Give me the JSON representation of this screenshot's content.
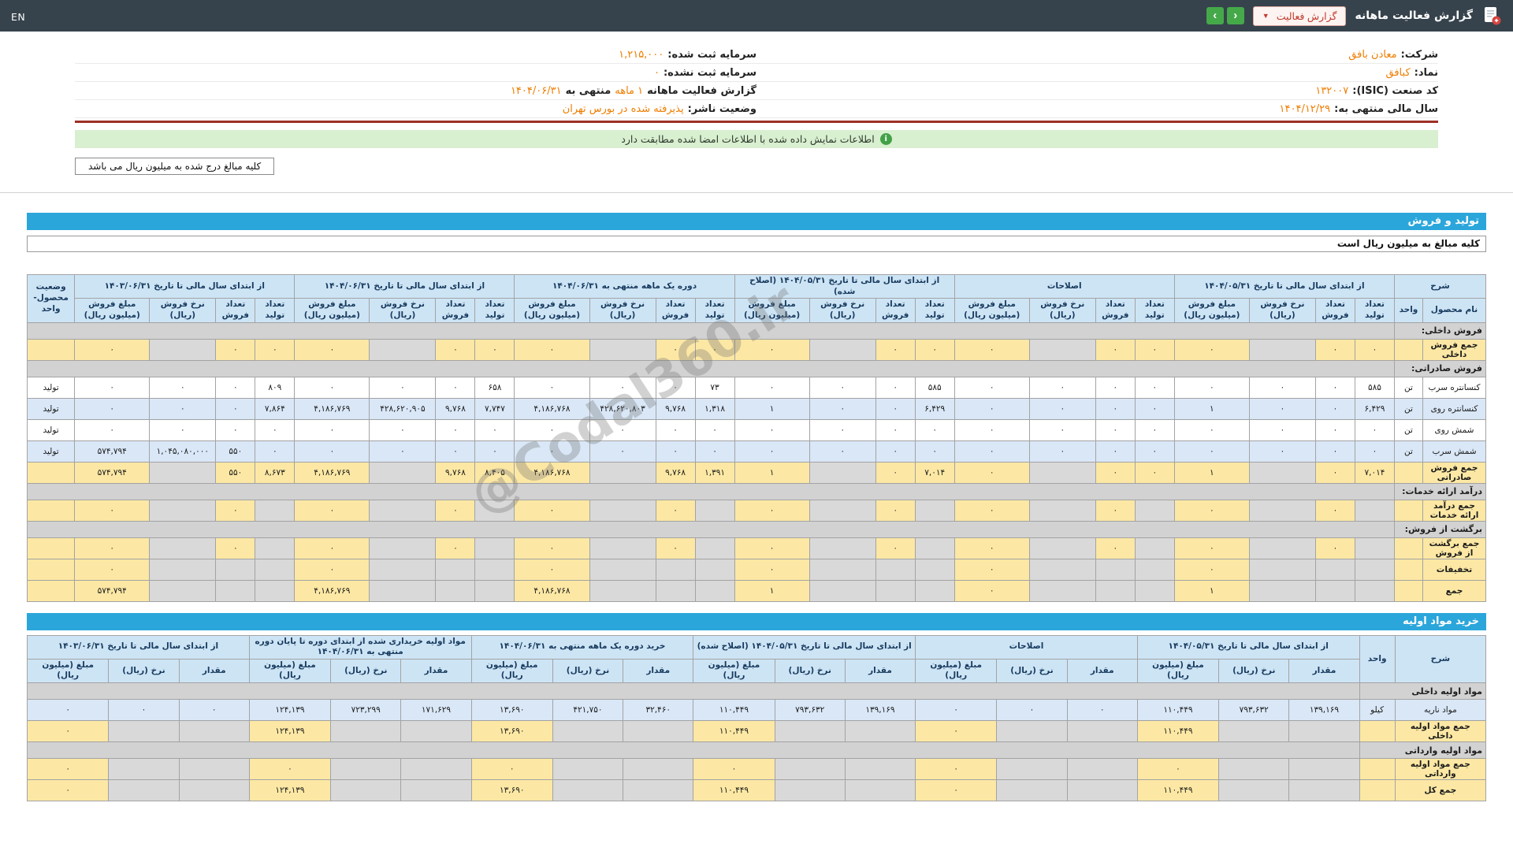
{
  "topbar": {
    "title": "گزارش فعالیت ماهانه",
    "dropdown_label": "گزارش فعالیت",
    "nav_prev": "‹",
    "nav_next": "›",
    "lang": "EN"
  },
  "info": {
    "rows": [
      {
        "r_label": "شرکت:",
        "r_value": "معادن بافق",
        "l_label": "سرمایه ثبت شده:",
        "l_value": "۱,۲۱۵,۰۰۰"
      },
      {
        "r_label": "نماد:",
        "r_value": "کبافق",
        "l_label": "سرمایه ثبت نشده:",
        "l_value": "۰"
      },
      {
        "r_label": "کد صنعت (ISIC):",
        "r_value": "۱۳۲۰۰۷",
        "l_label": "گزارش فعالیت ماهانه",
        "l_value": "۱ ماهه",
        "l_label2": "منتهی به",
        "l_value2": "۱۴۰۴/۰۶/۳۱"
      },
      {
        "r_label": "سال مالی منتهی به:",
        "r_value": "۱۴۰۴/۱۲/۲۹",
        "l_label": "وضعیت ناشر:",
        "l_value": "پذیرفته شده در بورس تهران"
      }
    ],
    "notice_icon": "i",
    "notice": "اطلاعات نمایش داده شده با اطلاعات امضا شده مطابقت دارد",
    "amounts_note": "کلیه مبالغ درج شده به میلیون ریال می باشد"
  },
  "watermark": "@Codal360.ir",
  "sales": {
    "section_title": "تولید و فروش",
    "subtitle": "کلیه مبالغ به میلیون ریال است",
    "header": {
      "desc": "شرح",
      "product": "نام محصول",
      "unit": "واحد",
      "status": "وضعیت محصول-واحد",
      "groups": [
        {
          "label": "از ابتدای سال مالی تا تاریخ ۱۴۰۴/۰۵/۳۱"
        },
        {
          "label": "اصلاحات"
        },
        {
          "label": "از ابتدای سال مالی تا تاریخ ۱۴۰۴/۰۵/۳۱ (اصلاح شده)"
        },
        {
          "label": "دوره یک ماهه منتهی به ۱۴۰۴/۰۶/۳۱"
        },
        {
          "label": "از ابتدای سال مالی تا تاریخ ۱۴۰۴/۰۶/۳۱"
        },
        {
          "label": "از ابتدای سال مالی تا تاریخ ۱۴۰۳/۰۶/۳۱"
        }
      ],
      "subcols": [
        "تعداد تولید",
        "تعداد فروش",
        "نرخ فروش (ریال)",
        "مبلغ فروش (میلیون ریال)"
      ]
    },
    "rows": [
      {
        "type": "section",
        "label": "فروش داخلی:"
      },
      {
        "type": "sum",
        "label": "جمع فروش داخلی",
        "unit": "",
        "status": "",
        "cells": [
          "۰",
          "۰",
          null,
          "۰",
          "۰",
          "۰",
          null,
          "۰",
          "۰",
          "۰",
          null,
          "۰",
          "۰",
          "۰",
          null,
          "۰",
          "۰",
          "۰",
          null,
          "۰",
          "۰",
          "۰",
          null,
          "۰"
        ]
      },
      {
        "type": "section",
        "label": "فروش صادراتی:"
      },
      {
        "type": "data",
        "alt": false,
        "label": "کنسانتره سرب",
        "unit": "تن",
        "status": "تولید",
        "cells": [
          "۵۸۵",
          "۰",
          "۰",
          "۰",
          "۰",
          "۰",
          "۰",
          "۰",
          "۵۸۵",
          "۰",
          "۰",
          "۰",
          "۷۳",
          "۰",
          "۰",
          "۰",
          "۶۵۸",
          "۰",
          "۰",
          "۰",
          "۸۰۹",
          "۰",
          "۰",
          "۰"
        ]
      },
      {
        "type": "data",
        "alt": true,
        "label": "کنسانتره روی",
        "unit": "تن",
        "status": "تولید",
        "cells": [
          "۶,۴۲۹",
          "۰",
          "۰",
          "۱",
          "۰",
          "۰",
          "۰",
          "۰",
          "۶,۴۲۹",
          "۰",
          "۰",
          "۱",
          "۱,۳۱۸",
          "۹,۷۶۸",
          "۴۲۸,۶۲۰,۸۰۳",
          "۴,۱۸۶,۷۶۸",
          "۷,۷۴۷",
          "۹,۷۶۸",
          "۴۲۸,۶۲۰,۹۰۵",
          "۴,۱۸۶,۷۶۹",
          "۷,۸۶۴",
          "۰",
          "۰",
          "۰"
        ]
      },
      {
        "type": "data",
        "alt": false,
        "label": "شمش روی",
        "unit": "تن",
        "status": "تولید",
        "cells": [
          "۰",
          "۰",
          "۰",
          "۰",
          "۰",
          "۰",
          "۰",
          "۰",
          "۰",
          "۰",
          "۰",
          "۰",
          "۰",
          "۰",
          "۰",
          "۰",
          "۰",
          "۰",
          "۰",
          "۰",
          "۰",
          "۰",
          "۰",
          "۰"
        ]
      },
      {
        "type": "data",
        "alt": true,
        "label": "شمش سرب",
        "unit": "تن",
        "status": "تولید",
        "cells": [
          "۰",
          "۰",
          "۰",
          "۰",
          "۰",
          "۰",
          "۰",
          "۰",
          "۰",
          "۰",
          "۰",
          "۰",
          "۰",
          "۰",
          "۰",
          "۰",
          "۰",
          "۰",
          "۰",
          "۰",
          "۰",
          "۵۵۰",
          "۱,۰۴۵,۰۸۰,۰۰۰",
          "۵۷۴,۷۹۴"
        ]
      },
      {
        "type": "sum",
        "label": "جمع فروش صادراتی",
        "unit": "",
        "status": "",
        "cells": [
          "۷,۰۱۴",
          "۰",
          null,
          "۱",
          "۰",
          "۰",
          null,
          "۰",
          "۷,۰۱۴",
          "۰",
          null,
          "۱",
          "۱,۳۹۱",
          "۹,۷۶۸",
          null,
          "۴,۱۸۶,۷۶۸",
          "۸,۴۰۵",
          "۹,۷۶۸",
          null,
          "۴,۱۸۶,۷۶۹",
          "۸,۶۷۳",
          "۵۵۰",
          null,
          "۵۷۴,۷۹۴"
        ]
      },
      {
        "type": "section",
        "label": "درآمد ارائه خدمات:"
      },
      {
        "type": "sum",
        "label": "جمع درآمد ارائه خدمات",
        "unit": "",
        "status": "",
        "cells": [
          null,
          "۰",
          null,
          "۰",
          null,
          "۰",
          null,
          "۰",
          null,
          "۰",
          null,
          "۰",
          null,
          "۰",
          null,
          "۰",
          null,
          "۰",
          null,
          "۰",
          null,
          "۰",
          null,
          "۰"
        ]
      },
      {
        "type": "section",
        "label": "برگشت از فروش:"
      },
      {
        "type": "sum",
        "label": "جمع برگشت از فروش",
        "unit": "",
        "status": "",
        "cells": [
          null,
          "۰",
          null,
          "۰",
          null,
          "۰",
          null,
          "۰",
          null,
          "۰",
          null,
          "۰",
          null,
          "۰",
          null,
          "۰",
          null,
          "۰",
          null,
          "۰",
          null,
          "۰",
          null,
          "۰"
        ]
      },
      {
        "type": "sum",
        "label": "تخفیفات",
        "unit": "",
        "status": "",
        "cells": [
          null,
          null,
          null,
          "۰",
          null,
          null,
          null,
          "۰",
          null,
          null,
          null,
          "۰",
          null,
          null,
          null,
          "۰",
          null,
          null,
          null,
          "۰",
          null,
          null,
          null,
          "۰"
        ]
      },
      {
        "type": "sum",
        "label": "جمع",
        "unit": "",
        "status": "",
        "cells": [
          null,
          null,
          null,
          "۱",
          null,
          null,
          null,
          "۰",
          null,
          null,
          null,
          "۱",
          null,
          null,
          null,
          "۴,۱۸۶,۷۶۸",
          null,
          null,
          null,
          "۴,۱۸۶,۷۶۹",
          null,
          null,
          null,
          "۵۷۴,۷۹۴"
        ]
      }
    ]
  },
  "materials": {
    "section_title": "خرید مواد اولیه",
    "header": {
      "desc": "شرح",
      "unit": "واحد",
      "groups": [
        {
          "label": "از ابتدای سال مالی تا تاریخ ۱۴۰۴/۰۵/۳۱"
        },
        {
          "label": "اصلاحات"
        },
        {
          "label": "از ابتدای سال مالی تا تاریخ ۱۴۰۴/۰۵/۳۱ (اصلاح شده)"
        },
        {
          "label": "خرید دوره یک ماهه منتهی به ۱۴۰۴/۰۶/۳۱"
        },
        {
          "label": "مواد اولیه خریداری شده از ابتدای دوره تا پایان دوره منتهی به ۱۴۰۴/۰۶/۳۱"
        },
        {
          "label": "از ابتدای سال مالی تا تاریخ ۱۴۰۳/۰۶/۳۱"
        }
      ],
      "subcols": [
        "مقدار",
        "نرخ (ریال)",
        "مبلغ (میلیون ریال)"
      ]
    },
    "rows": [
      {
        "type": "section",
        "label": "مواد اولیه داخلی"
      },
      {
        "type": "data",
        "alt": true,
        "label": "مواد ناریه",
        "unit": "کیلو",
        "cells": [
          "۱۳۹,۱۶۹",
          "۷۹۳,۶۳۲",
          "۱۱۰,۴۴۹",
          "۰",
          "۰",
          "۰",
          "۱۳۹,۱۶۹",
          "۷۹۳,۶۳۲",
          "۱۱۰,۴۴۹",
          "۳۲,۴۶۰",
          "۴۲۱,۷۵۰",
          "۱۳,۶۹۰",
          "۱۷۱,۶۲۹",
          "۷۲۳,۲۹۹",
          "۱۲۴,۱۳۹",
          "۰",
          "۰",
          "۰"
        ]
      },
      {
        "type": "sum",
        "label": "جمع مواد اولیه داخلی",
        "unit": "",
        "cells": [
          null,
          null,
          "۱۱۰,۴۴۹",
          null,
          null,
          "۰",
          null,
          null,
          "۱۱۰,۴۴۹",
          null,
          null,
          "۱۳,۶۹۰",
          null,
          null,
          "۱۲۴,۱۳۹",
          null,
          null,
          "۰"
        ]
      },
      {
        "type": "section",
        "label": "مواد اولیه وارداتی"
      },
      {
        "type": "sum",
        "label": "جمع مواد اولیه وارداتی",
        "unit": "",
        "cells": [
          null,
          null,
          "۰",
          null,
          null,
          "۰",
          null,
          null,
          "۰",
          null,
          null,
          "۰",
          null,
          null,
          "۰",
          null,
          null,
          "۰"
        ]
      },
      {
        "type": "sum",
        "label": "جمع کل",
        "unit": "",
        "cells": [
          null,
          null,
          "۱۱۰,۴۴۹",
          null,
          null,
          "۰",
          null,
          null,
          "۱۱۰,۴۴۹",
          null,
          null,
          "۱۳,۶۹۰",
          null,
          null,
          "۱۲۴,۱۳۹",
          null,
          null,
          "۰"
        ]
      }
    ]
  }
}
